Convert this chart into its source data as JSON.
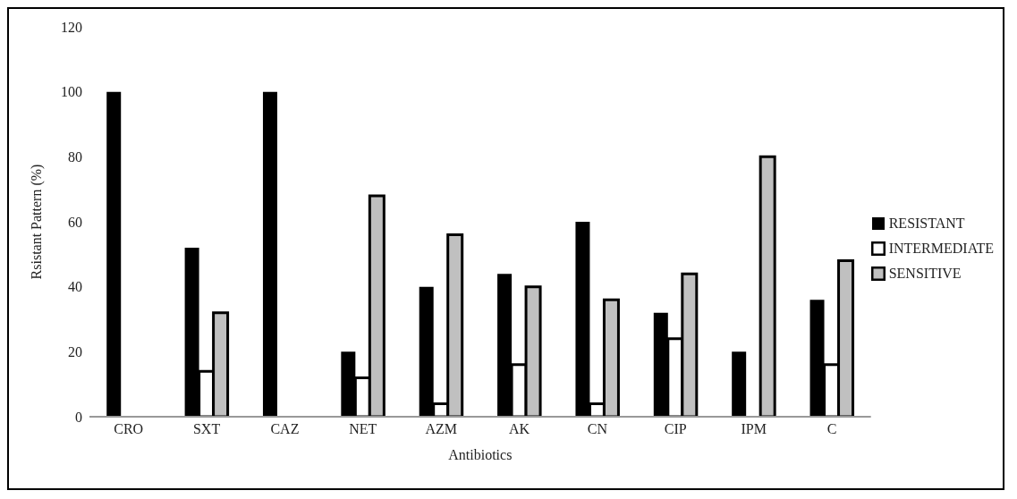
{
  "chart_data": {
    "type": "bar",
    "xlabel": "Antibiotics",
    "ylabel": "Rsistant Pattern (%)",
    "categories": [
      "CRO",
      "SXT",
      "CAZ",
      "NET",
      "AZM",
      "AK",
      "CN",
      "CIP",
      "IPM",
      "C"
    ],
    "series": [
      {
        "name": "RESISTANT",
        "color": "#000000",
        "values": [
          100,
          52,
          100,
          20,
          40,
          44,
          60,
          32,
          20,
          36
        ]
      },
      {
        "name": "INTERMEDIATE",
        "color": "#ffffff",
        "values": [
          0,
          14,
          0,
          12,
          4,
          16,
          4,
          24,
          0,
          16
        ]
      },
      {
        "name": "SENSITIVE",
        "color": "#c0c0c0",
        "values": [
          0,
          32,
          0,
          68,
          56,
          40,
          36,
          44,
          80,
          48
        ]
      }
    ],
    "ylim": [
      0,
      120
    ],
    "yticks": [
      0,
      20,
      40,
      60,
      80,
      100,
      120
    ],
    "grid": false,
    "legend": "right"
  }
}
